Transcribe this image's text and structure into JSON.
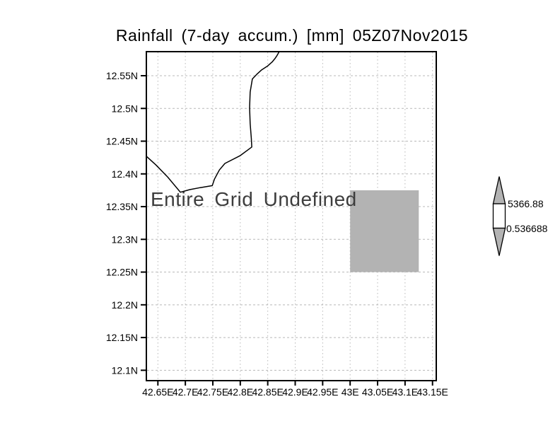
{
  "title": "Rainfall (7-day accum.) [mm] 05Z07Nov2015",
  "chart_data": {
    "type": "map",
    "title": "Rainfall (7-day accum.) [mm] 05Z07Nov2015",
    "annotation": "Entire Grid Undefined",
    "x_ticks": [
      "42.65E",
      "42.7E",
      "42.75E",
      "42.8E",
      "42.85E",
      "42.9E",
      "42.95E",
      "43E",
      "43.05E",
      "43.1E",
      "43.15E"
    ],
    "y_ticks": [
      "12.55N",
      "12.5N",
      "12.45N",
      "12.4N",
      "12.35N",
      "12.3N",
      "12.25N",
      "12.2N",
      "12.15N",
      "12.1N"
    ],
    "lon_range_approx": [
      42.63,
      43.16
    ],
    "lat_range_approx": [
      12.08,
      12.59
    ],
    "grid": "dotted",
    "undefined_region": {
      "lon": [
        43.0,
        43.125
      ],
      "lat": [
        12.25,
        12.375
      ]
    },
    "coastline_lonlat": [
      [
        42.871,
        12.587
      ],
      [
        42.867,
        12.581
      ],
      [
        42.863,
        12.576
      ],
      [
        42.858,
        12.571
      ],
      [
        42.85,
        12.565
      ],
      [
        42.839,
        12.559
      ],
      [
        42.83,
        12.552
      ],
      [
        42.822,
        12.545
      ],
      [
        42.818,
        12.525
      ],
      [
        42.817,
        12.501
      ],
      [
        42.818,
        12.477
      ],
      [
        42.82,
        12.455
      ],
      [
        42.821,
        12.441
      ],
      [
        42.8,
        12.428
      ],
      [
        42.772,
        12.416
      ],
      [
        42.762,
        12.406
      ],
      [
        42.753,
        12.392
      ],
      [
        42.749,
        12.382
      ],
      [
        42.727,
        12.379
      ],
      [
        42.708,
        12.376
      ],
      [
        42.691,
        12.372
      ],
      [
        42.668,
        12.395
      ],
      [
        42.646,
        12.414
      ],
      [
        42.629,
        12.427
      ]
    ],
    "colorbar": {
      "max_label": "5366.88",
      "min_label": "0.536688"
    },
    "colors": {
      "shade": "#b3b3b3",
      "grid": "#b8b8b8",
      "coastline": "#000000",
      "annotation": "#3d3d3d",
      "axis": "#000000",
      "background": "#ffffff"
    }
  }
}
